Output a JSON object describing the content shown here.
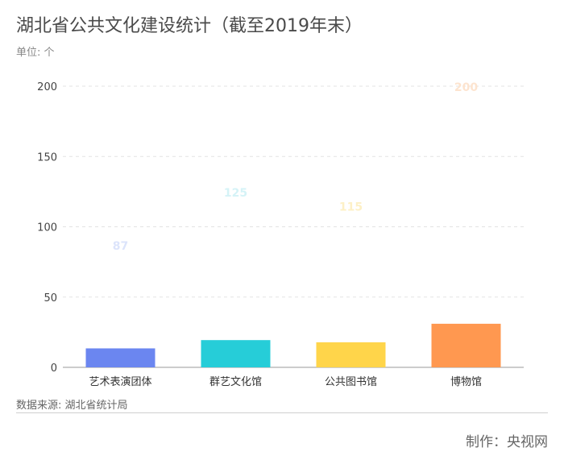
{
  "header": {
    "title": "湖北省公共文化建设统计（截至2019年末）",
    "unit": "单位: 个"
  },
  "footer": {
    "source": "数据来源: 湖北省统计局",
    "credit": "制作：央视网"
  },
  "chart_data": {
    "type": "bar",
    "categories": [
      "艺术表演团体",
      "群艺文化馆",
      "公共图书馆",
      "博物馆"
    ],
    "values": [
      87,
      125,
      115,
      200
    ],
    "colors": [
      "#6b86f0",
      "#26cdd8",
      "#ffd54a",
      "#ff9850"
    ],
    "label_colors": [
      "#dce4fb",
      "#d5f3f7",
      "#fdf0c6",
      "#fde4cf"
    ],
    "bar_fill_fraction": [
      0.155,
      0.155,
      0.155,
      0.155
    ],
    "title": "",
    "xlabel": "",
    "ylabel": "",
    "ylim": [
      0,
      200
    ],
    "yticks": [
      0,
      50,
      100,
      150,
      200
    ],
    "grid": true
  }
}
